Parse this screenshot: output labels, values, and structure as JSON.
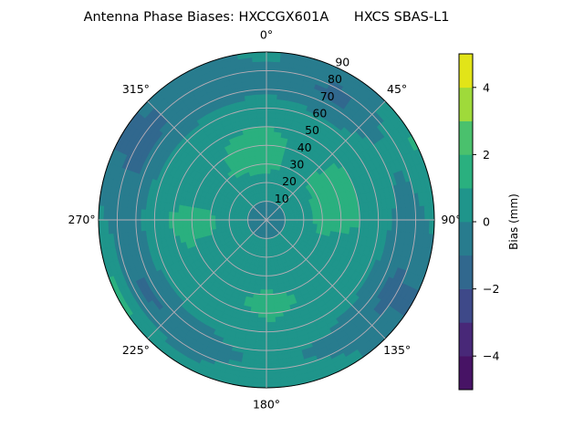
{
  "chart_data": {
    "type": "polar-contour",
    "title": "Antenna Phase Biases: HXCCGX601A      HXCS SBAS-L1",
    "angular_ticks": [
      "0°",
      "45°",
      "90°",
      "135°",
      "180°",
      "225°",
      "270°",
      "315°"
    ],
    "angular_tick_values": [
      0,
      45,
      90,
      135,
      180,
      225,
      270,
      315
    ],
    "radial_ticks": [
      "10",
      "20",
      "30",
      "40",
      "50",
      "60",
      "70",
      "80",
      "90"
    ],
    "radial_tick_values": [
      10,
      20,
      30,
      40,
      50,
      60,
      70,
      80,
      90
    ],
    "rlim": [
      0,
      90
    ],
    "direction": "clockwise",
    "zero_location": "N",
    "grid": true,
    "colorbar": {
      "label": "Bias (mm)",
      "levels": [
        -5,
        -4,
        -3,
        -2,
        -1,
        0,
        1,
        2,
        3,
        4,
        5
      ],
      "ticks": [
        -4,
        -2,
        0,
        2,
        4
      ],
      "tick_labels": [
        "−4",
        "−2",
        "0",
        "2",
        "4"
      ],
      "colors": [
        "#471365",
        "#482878",
        "#3e4989",
        "#31688e",
        "#287c8e",
        "#1f958b",
        "#2ab07f",
        "#4ac16d",
        "#9fda3a",
        "#e2e418"
      ],
      "colormap": "viridis"
    },
    "azimuth_grid": [
      0,
      30,
      60,
      90,
      120,
      150,
      180,
      210,
      240,
      270,
      300,
      330
    ],
    "zenith_grid": [
      0,
      15,
      30,
      45,
      60,
      75,
      90
    ],
    "values": [
      [
        -0.5,
        -0.5,
        -0.5,
        -0.5,
        -0.5,
        -0.5,
        -0.5,
        -0.5,
        -0.5,
        -0.5,
        -0.5,
        -0.5
      ],
      [
        0.3,
        0.3,
        0.3,
        0.3,
        0.3,
        0.3,
        0.3,
        0.3,
        0.3,
        0.3,
        0.3,
        0.3
      ],
      [
        1.3,
        0.8,
        1.2,
        1.4,
        0.6,
        0.5,
        0.6,
        0.4,
        0.7,
        1.2,
        0.6,
        1.2
      ],
      [
        1.4,
        0.5,
        1.3,
        1.3,
        0.3,
        0.8,
        1.4,
        0.6,
        0.8,
        1.4,
        0.4,
        1.0
      ],
      [
        0.5,
        0.2,
        0.4,
        0.5,
        0.2,
        0.5,
        0.8,
        0.3,
        0.3,
        0.6,
        0.2,
        0.3
      ],
      [
        -0.5,
        -1.3,
        0.2,
        -0.5,
        -1.3,
        -0.4,
        0.2,
        -0.6,
        -1.3,
        -0.6,
        -1.3,
        -0.8
      ],
      [
        0.3,
        -0.8,
        1.2,
        0.2,
        -1.2,
        0.3,
        0.8,
        0.2,
        1.5,
        0.3,
        -1.3,
        -0.5
      ]
    ]
  }
}
